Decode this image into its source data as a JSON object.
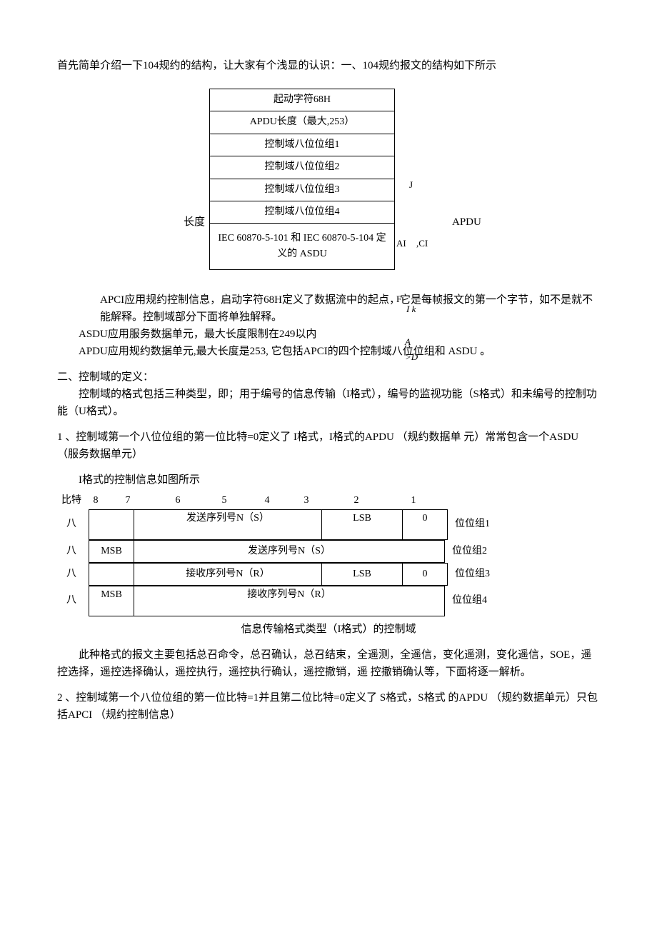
{
  "intro": "首先简单介绍一下104规约的结构，让大家有个浅显的认识：一、104规约报文的结构如下所示",
  "apdu_fig": {
    "left_label": "长度",
    "rows": [
      "起动字符68H",
      "APDU长度（最大,253）",
      "控制域八位位组1",
      "控制域八位位组2",
      "控制域八位位组3",
      "控制域八位位组4",
      "IEC 60870-5-101 和  IEC 60870-5-104 定义的  ASDU"
    ],
    "right_label": "APDU",
    "side": {
      "j": "J",
      "ai": "AI",
      "ci": ",CI",
      "f": "F",
      "ik": "I k",
      "ad": "A >D"
    }
  },
  "defn": {
    "apci": "APCI应用规约控制信息，启动字符68H定义了数据流中的起点，它是每帧报文的第一个字节，如不是就不能解释。控制域部分下面将单独解释。",
    "asdu": "ASDU应用服务数据单元，最大长度限制在249以内",
    "apdu": "APDU应用规约数据单元,最大长度是253, 它包括APCI的四个控制域八位位组和  ASDU 。"
  },
  "sec2": {
    "title": "二、控制域的定义：",
    "body": "控制域的格式包括三种类型，即；用于编号的信息传输（I格式），编号的监视功能（S格式）和未编号的控制功能（U格式）。"
  },
  "item1": {
    "head": "1 、控制域第一个八位位组的第一位比特=0定义了  I格式，I格式的APDU （规约数据单  元）常常包含一个ASDU （服务数据单元）",
    "sub": "I格式的控制信息如图所示",
    "bit_label": "比特",
    "bits": [
      "8",
      "7",
      "6",
      "5",
      "4",
      "3",
      "2",
      "1"
    ],
    "rows": [
      {
        "left": "八",
        "c1": "",
        "c2": "发送序列号N（S）",
        "c3": "LSB",
        "c4": "0",
        "right": "位位组1",
        "tall": true
      },
      {
        "left": "八",
        "c1": "MSB",
        "c2": "发送序列号N（S）",
        "c3": "",
        "c4": "",
        "right": "位位组2",
        "merge34": true
      },
      {
        "left": "八",
        "c1": "",
        "c2": "接收序列号N（R）",
        "c3": "LSB",
        "c4": "0",
        "right": "位位组3"
      },
      {
        "left": "八",
        "c1": "MSB",
        "c2": "接收序列号N（R）",
        "c3": "",
        "c4": "",
        "right": "位位组4",
        "merge34": true,
        "tall": true
      }
    ],
    "caption": "信息传输格式类型（I格式）的控制域",
    "after": "此种格式的报文主要包括总召命令，总召确认，总召结束，全遥测，全遥信，变化遥测，变化遥信，SOE，遥控选择，遥控选择确认，遥控执行，遥控执行确认，遥控撤销，遥  控撤销确认等，下面将逐一解析。"
  },
  "item2": "2 、控制域第一个八位位组的第一位比特=1并且第二位比特=0定义了  S格式，S格式  的APDU （规约数据单元）只包括APCI （规约控制信息）",
  "col_widths": {
    "c1": 60,
    "c2": 260,
    "c3": 110,
    "c4": 60
  },
  "bit_col_widths": [
    20,
    70,
    70,
    60,
    60,
    50,
    90,
    70
  ]
}
